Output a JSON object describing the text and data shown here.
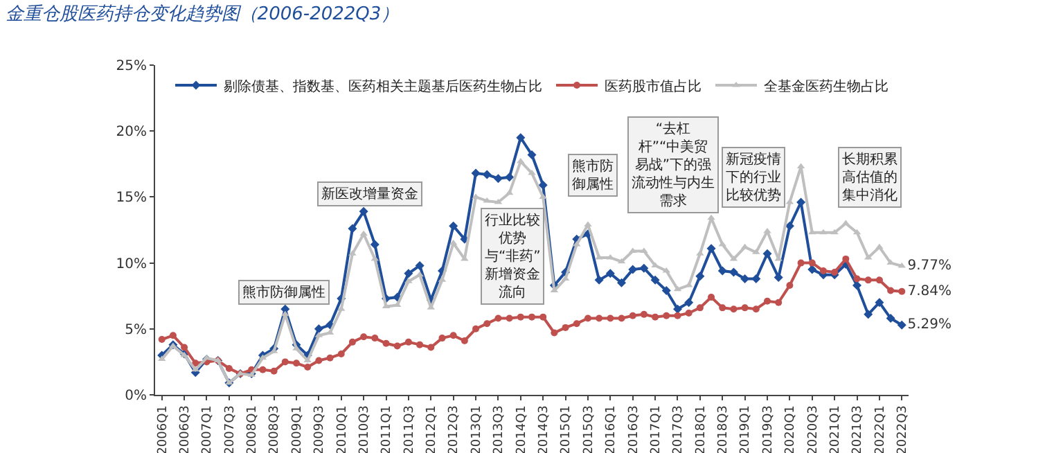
{
  "chart_data": {
    "type": "line",
    "title": "金重仓股医药持仓变化趋势图（2006-2022Q3）",
    "categories": [
      "2006Q1",
      null,
      "2006Q3",
      null,
      "2007Q1",
      null,
      "2007Q3",
      null,
      "2008Q1",
      null,
      "2008Q3",
      null,
      "2009Q1",
      null,
      "2009Q3",
      null,
      "2010Q1",
      null,
      "2010Q3",
      null,
      "2011Q1",
      null,
      "2011Q3",
      null,
      "2012Q1",
      null,
      "2012Q3",
      null,
      "2013Q1",
      null,
      "2013Q3",
      null,
      "2014Q1",
      null,
      "2014Q3",
      null,
      "2015Q1",
      null,
      "2015Q3",
      null,
      "2016Q1",
      null,
      "2016Q3",
      null,
      "2017Q1",
      null,
      "2017Q3",
      null,
      "2018Q1",
      null,
      "2018Q3",
      null,
      "2019Q1",
      null,
      "2019Q3",
      null,
      "2020Q1",
      null,
      "2020Q3",
      null,
      "2021Q1",
      null,
      "2021Q3",
      null,
      "2022Q1",
      null,
      "2022Q3"
    ],
    "series": [
      {
        "name": "剔除债基、指数基、医药相关主题基后医药生物占比",
        "color": "#1f4e9a",
        "marker": "diamond",
        "values": [
          3.0,
          3.8,
          3.1,
          1.7,
          2.7,
          2.6,
          0.9,
          1.6,
          1.6,
          3.0,
          3.5,
          6.5,
          3.8,
          3.0,
          5.0,
          5.3,
          7.3,
          12.6,
          13.9,
          11.4,
          7.3,
          7.4,
          9.2,
          9.8,
          7.2,
          9.4,
          12.8,
          11.8,
          16.8,
          16.7,
          16.4,
          16.5,
          19.5,
          18.2,
          15.9,
          8.3,
          9.3,
          11.8,
          12.2,
          8.7,
          9.2,
          8.5,
          9.5,
          9.6,
          8.7,
          7.9,
          6.5,
          7.0,
          9.0,
          11.1,
          9.4,
          9.3,
          8.8,
          8.8,
          10.7,
          8.9,
          12.8,
          14.6,
          9.5,
          9.1,
          9.1,
          9.9,
          8.3,
          6.1,
          7.0,
          5.8,
          5.29
        ],
        "value_labels": [
          null,
          null,
          null,
          null,
          null,
          null,
          null,
          null,
          null,
          null,
          null,
          null,
          null,
          null,
          null,
          null,
          null,
          null,
          null,
          null,
          null,
          null,
          null,
          null,
          null,
          null,
          null,
          null,
          null,
          null,
          null,
          null,
          null,
          null,
          null,
          null,
          null,
          null,
          null,
          null,
          null,
          null,
          null,
          null,
          null,
          null,
          null,
          null,
          null,
          null,
          null,
          null,
          null,
          null,
          null,
          null,
          null,
          null,
          null,
          null,
          null,
          null,
          null,
          null,
          null,
          null,
          "5.29%"
        ]
      },
      {
        "name": "医药股市值占比",
        "color": "#c0504d",
        "marker": "circle",
        "values": [
          4.2,
          4.5,
          3.6,
          2.4,
          2.5,
          2.6,
          2.0,
          1.6,
          1.9,
          1.9,
          1.8,
          2.5,
          2.4,
          2.1,
          2.6,
          2.8,
          3.1,
          4.0,
          4.4,
          4.3,
          3.9,
          3.7,
          4.0,
          3.8,
          3.6,
          4.3,
          4.5,
          4.1,
          5.0,
          5.4,
          5.8,
          5.8,
          5.9,
          5.9,
          5.9,
          4.7,
          5.1,
          5.4,
          5.8,
          5.8,
          5.8,
          5.8,
          6.0,
          6.1,
          5.9,
          6.0,
          6.0,
          6.2,
          6.6,
          7.4,
          6.6,
          6.5,
          6.6,
          6.5,
          7.1,
          7.0,
          8.3,
          10.0,
          10.0,
          9.4,
          9.3,
          10.3,
          8.8,
          8.7,
          8.7,
          7.9,
          7.84
        ],
        "value_labels": [
          null,
          null,
          null,
          null,
          null,
          null,
          null,
          null,
          null,
          null,
          null,
          null,
          null,
          null,
          null,
          null,
          null,
          null,
          null,
          null,
          null,
          null,
          null,
          null,
          null,
          null,
          null,
          null,
          null,
          null,
          null,
          null,
          null,
          null,
          null,
          null,
          null,
          null,
          null,
          null,
          null,
          null,
          null,
          null,
          null,
          null,
          null,
          null,
          null,
          null,
          null,
          null,
          null,
          null,
          null,
          null,
          null,
          null,
          null,
          null,
          null,
          null,
          null,
          null,
          null,
          null,
          "7.84%"
        ]
      },
      {
        "name": "全基金医药生物占比",
        "color": "#bfbfbf",
        "marker": "triangle",
        "values": [
          2.7,
          3.7,
          3.0,
          1.9,
          2.8,
          2.6,
          0.9,
          1.6,
          1.5,
          2.8,
          3.3,
          6.1,
          3.5,
          2.6,
          4.5,
          4.7,
          6.5,
          10.7,
          12.2,
          10.3,
          6.7,
          6.8,
          8.6,
          9.1,
          6.6,
          8.7,
          11.5,
          10.3,
          15.0,
          14.7,
          14.6,
          15.3,
          17.7,
          16.8,
          15.0,
          7.9,
          8.8,
          11.4,
          12.9,
          10.4,
          10.4,
          10.1,
          10.9,
          10.9,
          9.8,
          9.4,
          8.0,
          8.3,
          10.7,
          13.4,
          11.4,
          10.3,
          11.2,
          10.8,
          12.4,
          10.3,
          14.6,
          17.3,
          12.3,
          12.3,
          12.3,
          13.0,
          12.3,
          10.4,
          11.2,
          10.0,
          9.77
        ],
        "value_labels": [
          null,
          null,
          null,
          null,
          null,
          null,
          null,
          null,
          null,
          null,
          null,
          null,
          null,
          null,
          null,
          null,
          null,
          null,
          null,
          null,
          null,
          null,
          null,
          null,
          null,
          null,
          null,
          null,
          null,
          null,
          null,
          null,
          null,
          null,
          null,
          null,
          null,
          null,
          null,
          null,
          null,
          null,
          null,
          null,
          null,
          null,
          null,
          null,
          null,
          null,
          null,
          null,
          null,
          null,
          null,
          null,
          null,
          null,
          null,
          null,
          null,
          null,
          null,
          null,
          null,
          null,
          "9.77%"
        ]
      }
    ],
    "ylim": [
      0,
      25
    ],
    "yticks": [
      {
        "value": 0,
        "label": "0%"
      },
      {
        "value": 5,
        "label": "5%"
      },
      {
        "value": 10,
        "label": "10%"
      },
      {
        "value": 15,
        "label": "15%"
      },
      {
        "value": 20,
        "label": "20%"
      },
      {
        "value": 25,
        "label": "25%"
      }
    ],
    "legend": "top",
    "annotations": [
      "熊市防御属性",
      "新医改增量资金",
      "行业比较优势与“非药”新增资金流向",
      "熊市防御属性",
      "“去杠杆”“中美贸易战”下的强流动性与内生需求",
      "新冠疫情下的行业比较优势",
      "长期积累高估值的集中消化"
    ]
  }
}
